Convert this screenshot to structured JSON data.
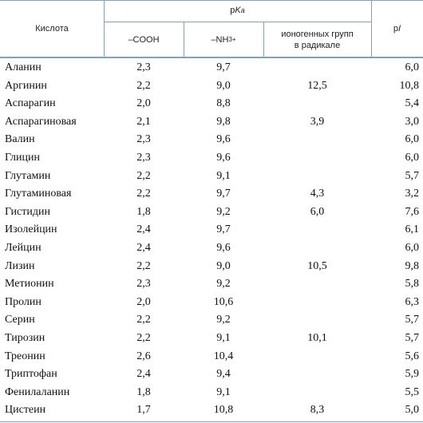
{
  "header": {
    "acid": "Кислота",
    "pka": {
      "p": "p",
      "k": "K",
      "a": "a"
    },
    "cooh": "–COOH",
    "nh3": {
      "base": "–NH",
      "sub": "3",
      "sup": "+"
    },
    "radical": "ионогенных групп\nв радикале",
    "pi": {
      "p": "p",
      "i": "I"
    }
  },
  "table": {
    "rows": [
      [
        "Аланин",
        "2,3",
        "9,7",
        null,
        "6,0"
      ],
      [
        "Аргинин",
        "2,2",
        "9,0",
        "12,5",
        "10,8"
      ],
      [
        "Аспарагин",
        "2,0",
        "8,8",
        null,
        "5,4"
      ],
      [
        "Аспарагиновая",
        "2,1",
        "9,8",
        "3,9",
        "3,0"
      ],
      [
        "Валин",
        "2,3",
        "9,6",
        null,
        "6,0"
      ],
      [
        "Глицин",
        "2,3",
        "9,6",
        null,
        "6,0"
      ],
      [
        "Глутамин",
        "2,2",
        "9,1",
        null,
        "5,7"
      ],
      [
        "Глутаминовая",
        "2,2",
        "9,7",
        "4,3",
        "3,2"
      ],
      [
        "Гистидин",
        "1,8",
        "9,2",
        "6,0",
        "7,6"
      ],
      [
        "Изолейцин",
        "2,4",
        "9,7",
        null,
        "6,1"
      ],
      [
        "Лейцин",
        "2,4",
        "9,6",
        null,
        "6,0"
      ],
      [
        "Лизин",
        "2,2",
        "9,0",
        "10,5",
        "9,8"
      ],
      [
        "Метионин",
        "2,3",
        "9,2",
        null,
        "5,8"
      ],
      [
        "Пролин",
        "2,0",
        "10,6",
        null,
        "6,3"
      ],
      [
        "Серин",
        "2,2",
        "9,2",
        null,
        "5,7"
      ],
      [
        "Тирозин",
        "2,2",
        "9,1",
        "10,1",
        "5,7"
      ],
      [
        "Треонин",
        "2,6",
        "10,4",
        null,
        "5,6"
      ],
      [
        "Триптофан",
        "2,4",
        "9,4",
        null,
        "5,9"
      ],
      [
        "Фенилаланин",
        "1,8",
        "9,1",
        null,
        "5,5"
      ],
      [
        "Цистеин",
        "1,7",
        "10,8",
        "8,3",
        "5,0"
      ]
    ]
  }
}
